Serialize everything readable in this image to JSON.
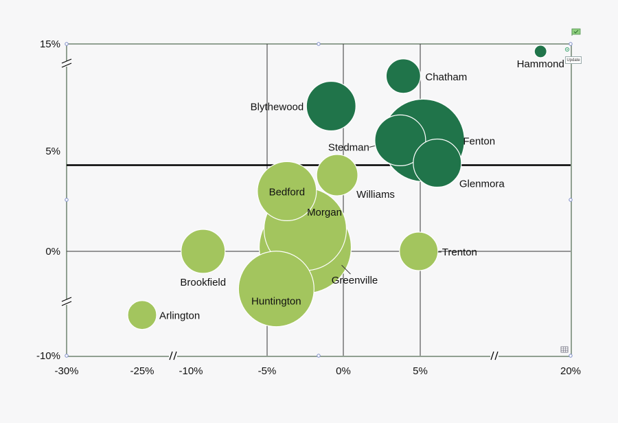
{
  "chart_data": {
    "type": "bubble",
    "title": "",
    "xlabel": "",
    "ylabel": "",
    "xlim": [
      -30,
      20
    ],
    "ylim": [
      -10,
      15
    ],
    "x_tick_labels": [
      "-30%",
      "-25%",
      "-10%",
      "-5%",
      "0%",
      "5%",
      "20%"
    ],
    "y_tick_labels": [
      "15%",
      "5%",
      "0%",
      "-10%"
    ],
    "x_axis_breaks": [
      "between -25% and -10%",
      "between 5% and 20%"
    ],
    "y_axis_breaks": [
      "between 5% and 15%",
      "between -10% and 0%"
    ],
    "reference_line": {
      "axis": "y",
      "value": 4.3
    },
    "colors": {
      "dark": "#20744a",
      "light": "#a3c55e",
      "grid": "#333333",
      "plot_border": "#2a4a2a"
    },
    "bubbles": [
      {
        "name": "Hammond",
        "x": 17.0,
        "y": 14.3,
        "size": 9,
        "group": "dark"
      },
      {
        "name": "Chatham",
        "x": 3.9,
        "y": 12.0,
        "size": 25,
        "group": "dark"
      },
      {
        "name": "Blythewood",
        "x": -0.8,
        "y": 9.2,
        "size": 36,
        "group": "dark"
      },
      {
        "name": "Fenton",
        "x": 5.3,
        "y": 6.0,
        "size": 60,
        "group": "dark"
      },
      {
        "name": "Stedman",
        "x": 3.7,
        "y": 6.0,
        "size": 37,
        "group": "dark"
      },
      {
        "name": "Glenmora",
        "x": 6.7,
        "y": 4.4,
        "size": 35,
        "group": "dark"
      },
      {
        "name": "Williams",
        "x": -0.4,
        "y": 3.8,
        "size": 30,
        "group": "light"
      },
      {
        "name": "Bedford",
        "x": -3.7,
        "y": 3.0,
        "size": 43,
        "group": "light"
      },
      {
        "name": "Morgan",
        "x": -2.5,
        "y": 1.1,
        "size": 60,
        "group": "light"
      },
      {
        "name": "Greenville",
        "x": -2.5,
        "y": 0.2,
        "size": 67,
        "group": "light"
      },
      {
        "name": "Trenton",
        "x": 4.9,
        "y": 0.0,
        "size": 28,
        "group": "light"
      },
      {
        "name": "Brookfield",
        "x": -9.2,
        "y": 0.0,
        "size": 32,
        "group": "light"
      },
      {
        "name": "Huntington",
        "x": -4.4,
        "y": -3.6,
        "size": 55,
        "group": "light"
      },
      {
        "name": "Arlington",
        "x": -25.0,
        "y": -6.1,
        "size": 21,
        "group": "light"
      }
    ]
  },
  "toolbar": {
    "update_label": "Update",
    "flag_icon": "flag-icon",
    "refresh_icon": "refresh-icon",
    "grid_icon": "grid-icon"
  }
}
